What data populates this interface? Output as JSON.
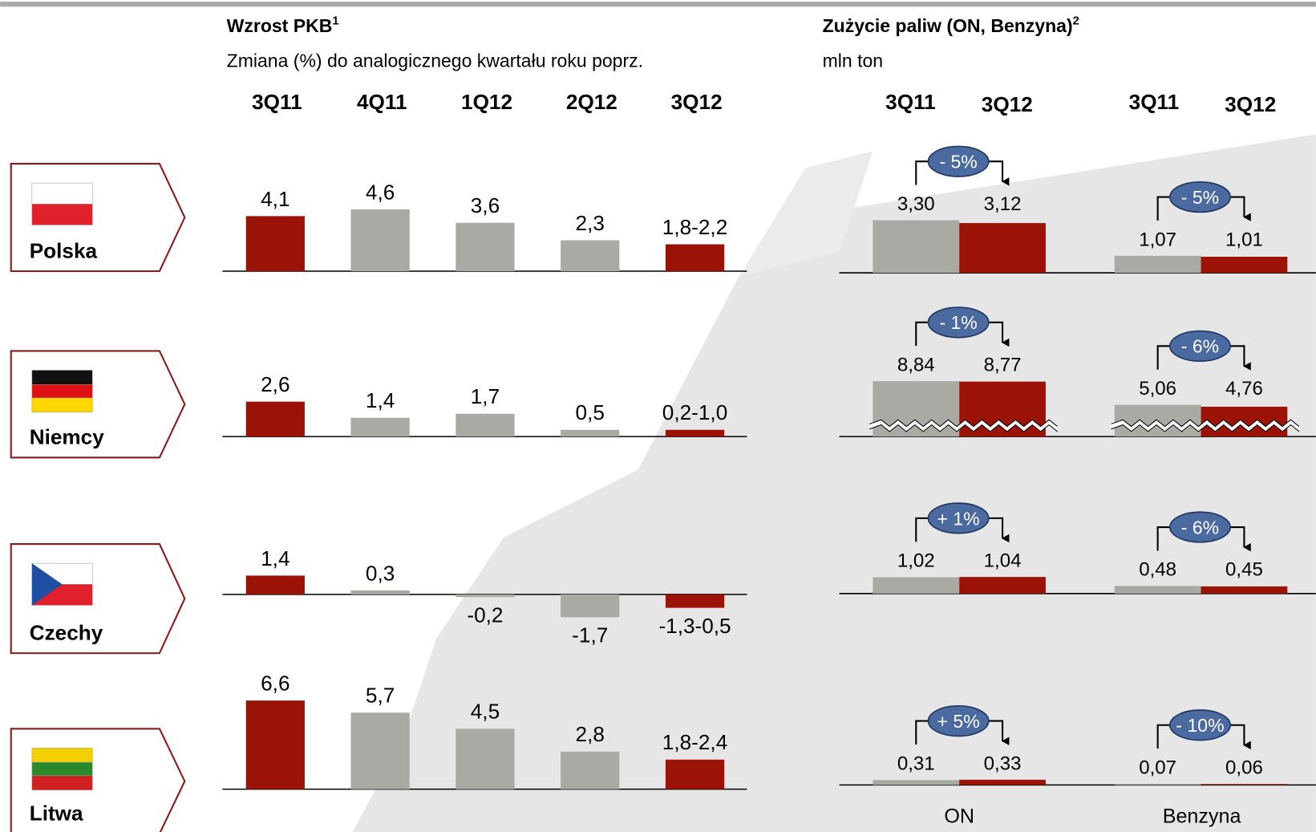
{
  "countries": [
    "Polska",
    "Niemcy",
    "Czechy",
    "Litwa"
  ],
  "gdp": {
    "title": "Wzrost PKB",
    "title_note": "1",
    "subtitle": "Zmiana (%) do analogicznego kwartału roku poprz.",
    "quarters": [
      "3Q11",
      "4Q11",
      "1Q12",
      "2Q12",
      "3Q12"
    ],
    "rows": [
      {
        "values": [
          4.1,
          4.6,
          3.6,
          2.3,
          2.0
        ],
        "value_labels": [
          "4,1",
          "4,6",
          "3,6",
          "2,3",
          "1,8-2,2"
        ]
      },
      {
        "values": [
          2.6,
          1.4,
          1.7,
          0.5,
          0.5
        ],
        "value_labels": [
          "2,6",
          "1,4",
          "1,7",
          "0,5",
          "0,2-1,0"
        ]
      },
      {
        "values": [
          1.4,
          0.3,
          -0.2,
          -1.7,
          -1.0
        ],
        "value_labels": [
          "1,4",
          "0,3",
          "-0,2",
          "-1,7",
          "-1,3-0,5"
        ]
      },
      {
        "values": [
          6.6,
          5.7,
          4.5,
          2.8,
          2.2
        ],
        "value_labels": [
          "6,6",
          "5,7",
          "4,5",
          "2,8",
          "1,8-2,4"
        ]
      }
    ]
  },
  "fuel": {
    "title": "Zużycie paliw (ON, Benzyna)",
    "title_note": "2",
    "subtitle": "mln ton",
    "periods": [
      "3Q11",
      "3Q12"
    ],
    "fuels": [
      "ON",
      "Benzyna"
    ],
    "rows": [
      {
        "values": [
          [
            3.3,
            3.12
          ],
          [
            1.07,
            1.01
          ]
        ],
        "value_labels": [
          [
            "3,30",
            "3,12"
          ],
          [
            "1,07",
            "1,01"
          ]
        ],
        "changes": [
          "- 5%",
          "- 5%"
        ],
        "axis_break": false
      },
      {
        "values": [
          [
            8.84,
            8.77
          ],
          [
            5.06,
            4.76
          ]
        ],
        "value_labels": [
          [
            "8,84",
            "8,77"
          ],
          [
            "5,06",
            "4,76"
          ]
        ],
        "changes": [
          "- 1%",
          "- 6%"
        ],
        "axis_break": true
      },
      {
        "values": [
          [
            1.02,
            1.04
          ],
          [
            0.48,
            0.45
          ]
        ],
        "value_labels": [
          [
            "1,02",
            "1,04"
          ],
          [
            "0,48",
            "0,45"
          ]
        ],
        "changes": [
          "+ 1%",
          "- 6%"
        ],
        "axis_break": false
      },
      {
        "values": [
          [
            0.31,
            0.33
          ],
          [
            0.07,
            0.06
          ]
        ],
        "value_labels": [
          [
            "0,31",
            "0,33"
          ],
          [
            "0,07",
            "0,06"
          ]
        ],
        "changes": [
          "+ 5%",
          "- 10%"
        ],
        "axis_break": false
      }
    ]
  }
}
